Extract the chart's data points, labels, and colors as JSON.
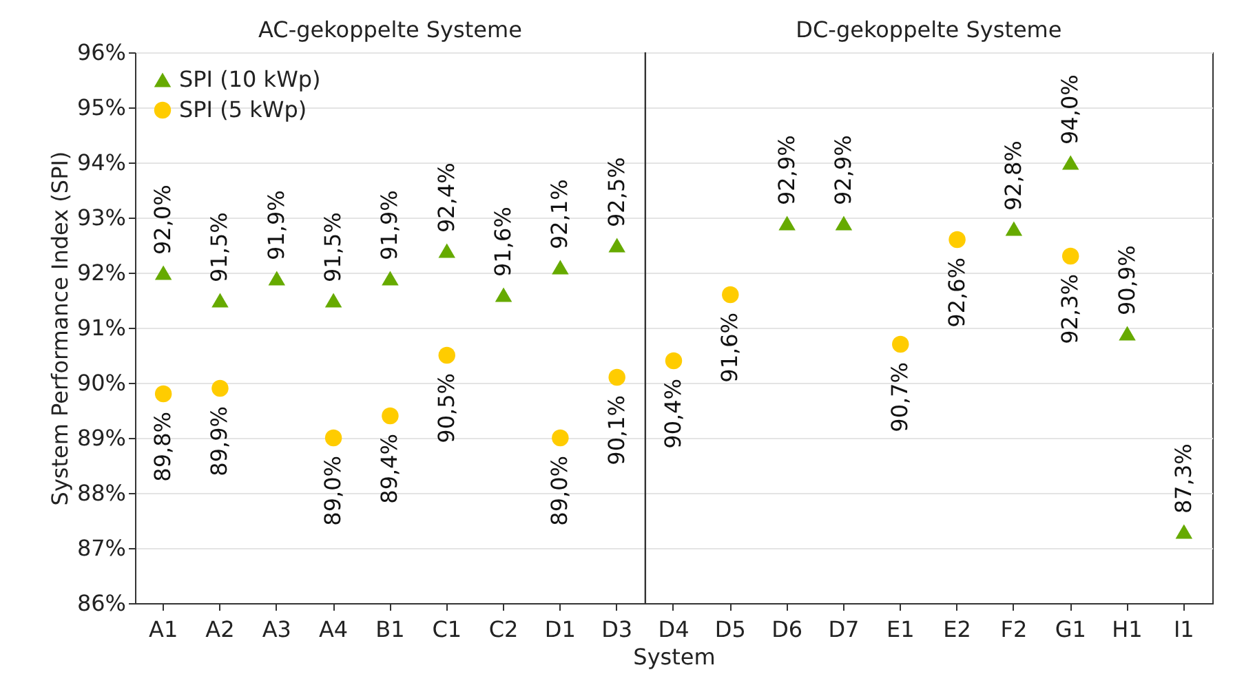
{
  "chart_data": {
    "type": "scatter",
    "xlabel": "System",
    "ylabel": "System Performance Index (SPI)",
    "categories": [
      "A1",
      "A2",
      "A3",
      "A4",
      "B1",
      "C1",
      "C2",
      "D1",
      "D3",
      "D4",
      "D5",
      "D6",
      "D7",
      "E1",
      "E2",
      "F2",
      "G1",
      "H1",
      "I1"
    ],
    "series": [
      {
        "name": "SPI (10 kWp)",
        "color": "#66aa00",
        "marker": "triangle",
        "values": [
          92.0,
          91.5,
          91.9,
          91.5,
          91.9,
          92.4,
          91.6,
          92.1,
          92.5,
          null,
          null,
          92.9,
          92.9,
          null,
          null,
          92.8,
          94.0,
          90.9,
          87.3
        ],
        "value_labels": [
          "92,0%",
          "91,5%",
          "91,9%",
          "91,5%",
          "91,9%",
          "92,4%",
          "91,6%",
          "92,1%",
          "92,5%",
          null,
          null,
          "92,9%",
          "92,9%",
          null,
          null,
          "92,8%",
          "94,0%",
          "90,9%",
          "87,3%"
        ]
      },
      {
        "name": "SPI (5 kWp)",
        "color": "#ffcc00",
        "marker": "circle",
        "values": [
          89.8,
          89.9,
          null,
          89.0,
          89.4,
          90.5,
          null,
          89.0,
          90.1,
          90.4,
          91.6,
          null,
          null,
          90.7,
          92.6,
          null,
          92.3,
          null,
          null
        ],
        "value_labels": [
          "89,8%",
          "89,9%",
          null,
          "89,0%",
          "89,4%",
          "90,5%",
          null,
          "89,0%",
          "90,1%",
          "90,4%",
          "91,6%",
          null,
          null,
          "90,7%",
          "92,6%",
          null,
          "92,3%",
          null,
          null
        ]
      }
    ],
    "ylim": [
      86,
      96
    ],
    "yticks": [
      {
        "value": 86,
        "label": "86%"
      },
      {
        "value": 87,
        "label": "87%"
      },
      {
        "value": 88,
        "label": "88%"
      },
      {
        "value": 89,
        "label": "89%"
      },
      {
        "value": 90,
        "label": "90%"
      },
      {
        "value": 91,
        "label": "91%"
      },
      {
        "value": 92,
        "label": "92%"
      },
      {
        "value": 93,
        "label": "93%"
      },
      {
        "value": 94,
        "label": "94%"
      },
      {
        "value": 95,
        "label": "95%"
      },
      {
        "value": 96,
        "label": "96%"
      }
    ],
    "grid": "y",
    "legend": "top left",
    "ref_lines": [
      {
        "axis": "x",
        "value": "D4",
        "color": "#333333"
      }
    ],
    "annotations": [
      "AC-gekoppelte Systeme",
      "DC-gekoppelte Systeme"
    ]
  }
}
